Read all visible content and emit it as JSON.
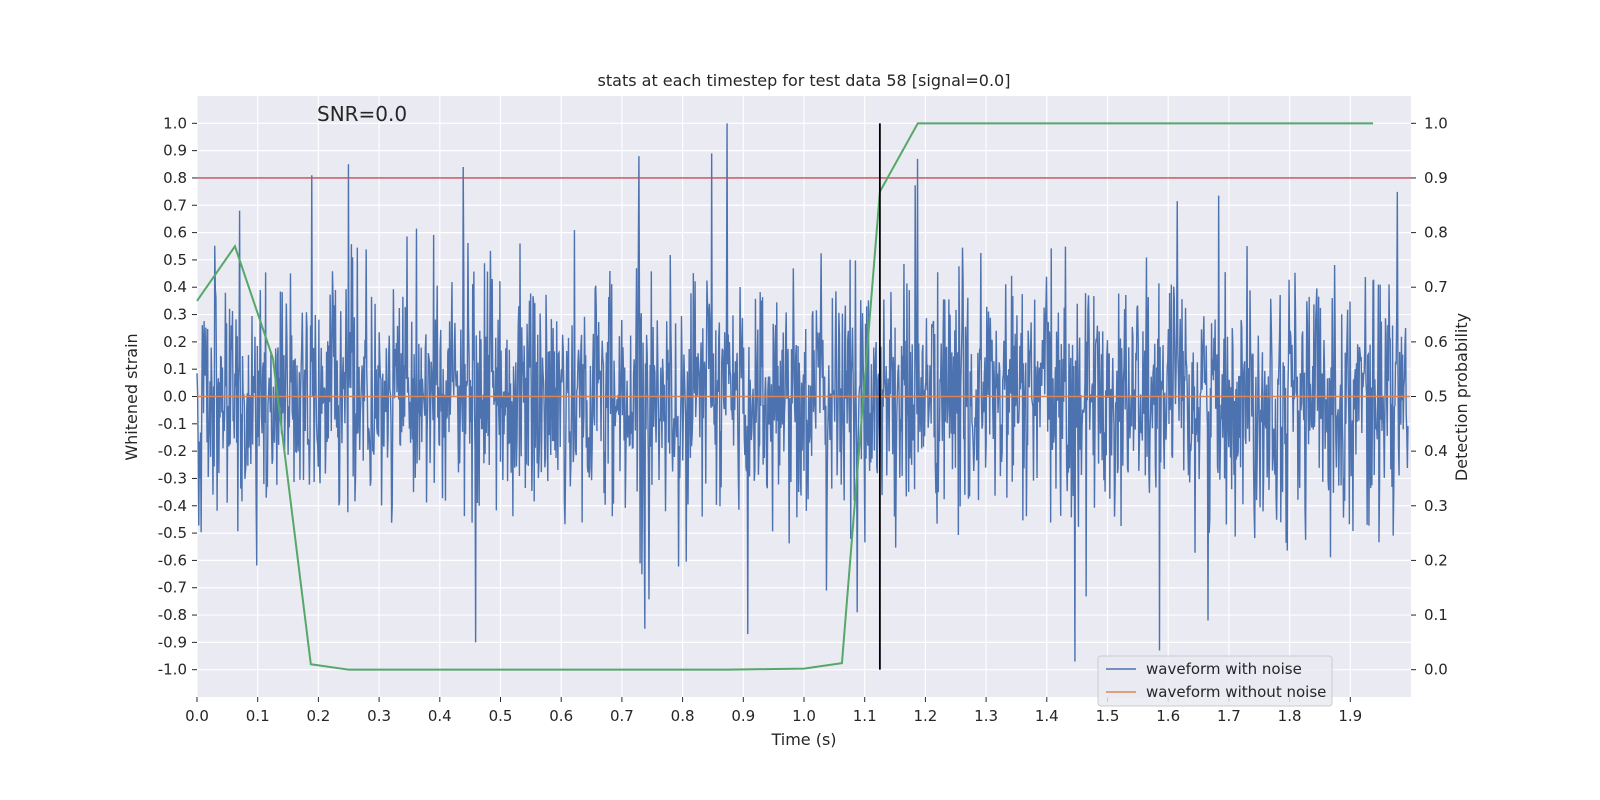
{
  "chart_data": {
    "type": "line",
    "title": "stats at each timestep for test data 58 [signal=0.0]",
    "xlabel": "Time (s)",
    "ylabel": "Whitened strain",
    "y2label": "Detection probability",
    "annotation": "SNR=0.0",
    "xlim": [
      0.0,
      2.0
    ],
    "ylim": [
      -1.1,
      1.1
    ],
    "y2lim": [
      -0.05,
      1.05
    ],
    "xticks": [
      "0.0",
      "0.1",
      "0.2",
      "0.3",
      "0.4",
      "0.5",
      "0.6",
      "0.7",
      "0.8",
      "0.9",
      "1.0",
      "1.1",
      "1.2",
      "1.3",
      "1.4",
      "1.5",
      "1.6",
      "1.7",
      "1.8",
      "1.9"
    ],
    "yticks": [
      "-1.0",
      "-0.9",
      "-0.8",
      "-0.7",
      "-0.6",
      "-0.5",
      "-0.4",
      "-0.3",
      "-0.2",
      "-0.1",
      "0.0",
      "0.1",
      "0.2",
      "0.3",
      "0.4",
      "0.5",
      "0.6",
      "0.7",
      "0.8",
      "0.9",
      "1.0"
    ],
    "y2ticks": [
      "0.0",
      "0.1",
      "0.2",
      "0.3",
      "0.4",
      "0.5",
      "0.6",
      "0.7",
      "0.8",
      "0.9",
      "1.0"
    ],
    "grid": true,
    "legend_position": "lower-right",
    "legend": [
      "waveform with noise",
      "waveform without noise"
    ],
    "noise_waveform": {
      "name": "waveform with noise",
      "color": "#4c72b0",
      "samples": 2048,
      "peaks": [
        {
          "x": 0.07,
          "y": 0.68
        },
        {
          "x": 0.19,
          "y": 0.81
        },
        {
          "x": 0.25,
          "y": 0.85
        },
        {
          "x": 0.44,
          "y": 0.84
        },
        {
          "x": 0.46,
          "y": -0.9
        },
        {
          "x": 0.73,
          "y": 0.88
        },
        {
          "x": 0.74,
          "y": -0.85
        },
        {
          "x": 0.85,
          "y": 0.89
        },
        {
          "x": 0.875,
          "y": 1.0
        },
        {
          "x": 0.91,
          "y": -0.87
        },
        {
          "x": 1.09,
          "y": -0.79
        },
        {
          "x": 1.19,
          "y": 0.87
        },
        {
          "x": 1.45,
          "y": -0.97
        },
        {
          "x": 1.59,
          "y": -0.93
        },
        {
          "x": 1.67,
          "y": -0.82
        }
      ]
    },
    "clean_waveform": {
      "name": "waveform without noise",
      "color": "#dd8452",
      "x": [
        0.0,
        2.0
      ],
      "y": [
        0.0,
        0.0
      ]
    },
    "detection_probability": {
      "color": "#55a868",
      "axis": "right",
      "x": [
        0.0,
        0.0625,
        0.125,
        0.1875,
        0.25,
        0.3125,
        0.375,
        0.4375,
        0.5,
        0.5625,
        0.625,
        0.6875,
        0.75,
        0.8125,
        0.875,
        0.9375,
        1.0,
        1.0625,
        1.125,
        1.1875,
        1.25,
        1.3125,
        1.375,
        1.4375,
        1.5,
        1.5625,
        1.625,
        1.6875,
        1.75,
        1.8125,
        1.875,
        1.9375
      ],
      "y": [
        0.675,
        0.775,
        0.57,
        0.01,
        0.0,
        0.0,
        0.0,
        0.0,
        0.0,
        0.0,
        0.0,
        0.0,
        0.0,
        0.0,
        0.0,
        0.001,
        0.002,
        0.012,
        0.875,
        1.0,
        1.0,
        1.0,
        1.0,
        1.0,
        1.0,
        1.0,
        1.0,
        1.0,
        1.0,
        1.0,
        1.0,
        1.0
      ]
    },
    "threshold_line": {
      "y2": 0.9,
      "color": "#c44e52"
    },
    "detection_marker": {
      "x": 1.125,
      "color": "#000000"
    }
  }
}
